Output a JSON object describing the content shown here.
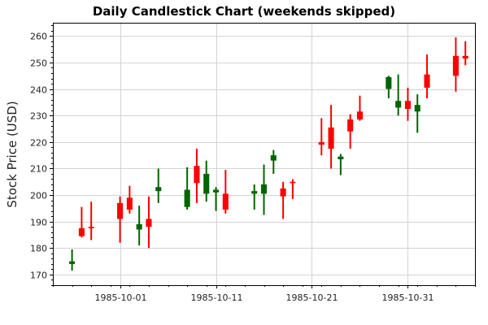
{
  "chart_data": {
    "type": "candlestick",
    "title": "Daily Candlestick Chart (weekends skipped)",
    "xlabel": "",
    "ylabel": "Stock Price (USD)",
    "ylim": [
      166,
      265
    ],
    "xlim": [
      "1985-09-24",
      "1985-11-07"
    ],
    "yticks": [
      170,
      180,
      190,
      200,
      210,
      220,
      230,
      240,
      250,
      260
    ],
    "xticks": [
      "1985-10-01",
      "1985-10-11",
      "1985-10-21",
      "1985-10-31"
    ],
    "grid": true,
    "colors": {
      "up": "#006400",
      "down": "#ff0000"
    },
    "series": [
      {
        "date": "1985-09-26",
        "open": 174,
        "high": 179.5,
        "low": 171.5,
        "close": 175
      },
      {
        "date": "1985-09-27",
        "open": 187.5,
        "high": 195.5,
        "low": 184,
        "close": 184.5
      },
      {
        "date": "1985-09-28",
        "open": 188,
        "high": 197.5,
        "low": 183,
        "close": 187.5
      },
      {
        "date": "1985-10-01",
        "open": 197,
        "high": 199.5,
        "low": 182,
        "close": 191
      },
      {
        "date": "1985-10-02",
        "open": 199,
        "high": 203.5,
        "low": 193,
        "close": 194.5
      },
      {
        "date": "1985-10-03",
        "open": 187,
        "high": 196,
        "low": 181,
        "close": 189
      },
      {
        "date": "1985-10-04",
        "open": 191,
        "high": 199.5,
        "low": 180,
        "close": 188
      },
      {
        "date": "1985-10-05",
        "open": 201.5,
        "high": 210,
        "low": 197,
        "close": 203
      },
      {
        "date": "1985-10-08",
        "open": 195.5,
        "high": 210.5,
        "low": 194.5,
        "close": 202
      },
      {
        "date": "1985-10-09",
        "open": 211,
        "high": 217.5,
        "low": 197,
        "close": 204.5
      },
      {
        "date": "1985-10-10",
        "open": 200.5,
        "high": 213,
        "low": 197.5,
        "close": 208
      },
      {
        "date": "1985-10-11",
        "open": 201,
        "high": 203,
        "low": 194,
        "close": 202
      },
      {
        "date": "1985-10-12",
        "open": 200.5,
        "high": 209.5,
        "low": 193,
        "close": 194.5
      },
      {
        "date": "1985-10-15",
        "open": 200.5,
        "high": 204,
        "low": 194.5,
        "close": 201.5
      },
      {
        "date": "1985-10-16",
        "open": 200.5,
        "high": 211.5,
        "low": 192.5,
        "close": 204
      },
      {
        "date": "1985-10-17",
        "open": 213,
        "high": 217,
        "low": 208,
        "close": 215
      },
      {
        "date": "1985-10-18",
        "open": 202.5,
        "high": 205,
        "low": 191,
        "close": 199.5
      },
      {
        "date": "1985-10-19",
        "open": 205,
        "high": 206,
        "low": 198.5,
        "close": 204.5
      },
      {
        "date": "1985-10-22",
        "open": 220,
        "high": 229,
        "low": 215,
        "close": 219
      },
      {
        "date": "1985-10-23",
        "open": 225.5,
        "high": 234,
        "low": 210,
        "close": 217.5
      },
      {
        "date": "1985-10-24",
        "open": 213.5,
        "high": 215.5,
        "low": 207.5,
        "close": 214.5
      },
      {
        "date": "1985-10-25",
        "open": 228.5,
        "high": 230.5,
        "low": 217.5,
        "close": 224
      },
      {
        "date": "1985-10-26",
        "open": 231.5,
        "high": 237.5,
        "low": 228,
        "close": 228.5
      },
      {
        "date": "1985-10-29",
        "open": 240,
        "high": 245,
        "low": 236.5,
        "close": 244.5
      },
      {
        "date": "1985-10-30",
        "open": 233,
        "high": 245.5,
        "low": 230,
        "close": 235.5
      },
      {
        "date": "1985-10-31",
        "open": 235.5,
        "high": 240.5,
        "low": 228,
        "close": 232.5
      },
      {
        "date": "1985-11-01",
        "open": 231.5,
        "high": 238,
        "low": 223.5,
        "close": 234
      },
      {
        "date": "1985-11-02",
        "open": 245.5,
        "high": 253,
        "low": 236.5,
        "close": 240.5
      },
      {
        "date": "1985-11-05",
        "open": 252.5,
        "high": 259.5,
        "low": 239,
        "close": 245
      },
      {
        "date": "1985-11-06",
        "open": 252.5,
        "high": 258,
        "low": 249,
        "close": 251.5
      }
    ]
  }
}
